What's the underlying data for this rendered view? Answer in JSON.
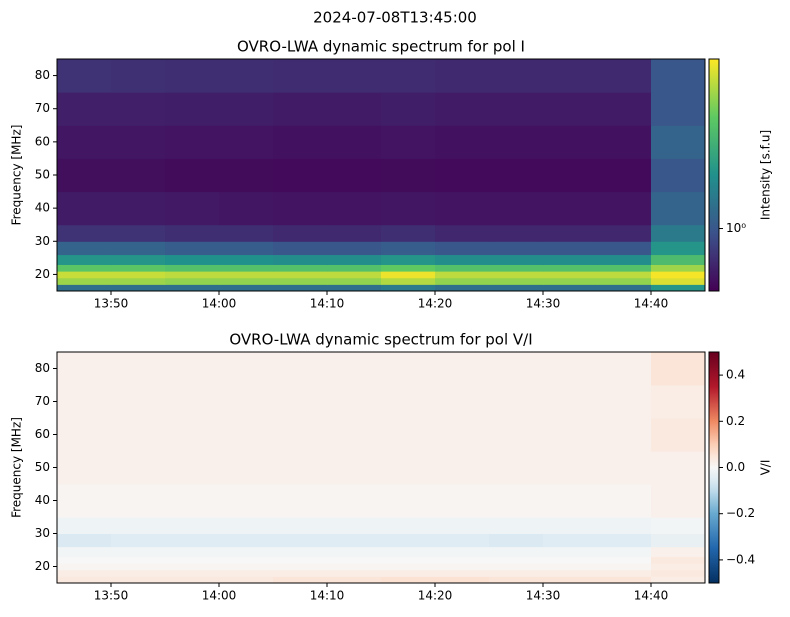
{
  "suptitle": "2024-07-08T13:45:00",
  "chart_data": [
    {
      "type": "heatmap",
      "title": "OVRO-LWA dynamic spectrum for pol I",
      "ylabel": "Frequency [MHz]",
      "xlim": [
        "13:45",
        "14:45"
      ],
      "xticks": [
        "13:50",
        "14:00",
        "14:10",
        "14:20",
        "14:30",
        "14:40"
      ],
      "ylim": [
        15,
        85
      ],
      "yticks": [
        20,
        30,
        40,
        50,
        60,
        70,
        80
      ],
      "x_edges": [
        "13:45",
        "13:50",
        "13:55",
        "14:00",
        "14:05",
        "14:10",
        "14:15",
        "14:20",
        "14:25",
        "14:30",
        "14:35",
        "14:40",
        "14:45"
      ],
      "y_edges": [
        15,
        17,
        19,
        21,
        23,
        26,
        30,
        35,
        45,
        55,
        65,
        75,
        85
      ],
      "values": [
        [
          1.2,
          1.2,
          1.2,
          1.2,
          1.2,
          1.2,
          1.3,
          1.2,
          1.2,
          1.2,
          1.2,
          1.6
        ],
        [
          3.0,
          3.0,
          2.9,
          2.9,
          2.9,
          2.9,
          3.2,
          2.9,
          2.9,
          2.9,
          2.9,
          3.6
        ],
        [
          3.4,
          3.4,
          3.3,
          3.3,
          3.3,
          3.3,
          3.8,
          3.3,
          3.3,
          3.3,
          3.3,
          3.9
        ],
        [
          2.4,
          2.4,
          2.3,
          2.3,
          2.3,
          2.3,
          2.5,
          2.3,
          2.3,
          2.3,
          2.3,
          3.0
        ],
        [
          1.6,
          1.6,
          1.55,
          1.55,
          1.5,
          1.5,
          1.6,
          1.5,
          1.5,
          1.5,
          1.5,
          2.2
        ],
        [
          1.1,
          1.1,
          1.05,
          1.05,
          1.0,
          1.0,
          1.05,
          1.0,
          1.0,
          1.0,
          1.0,
          1.6
        ],
        [
          0.8,
          0.8,
          0.78,
          0.78,
          0.76,
          0.76,
          0.78,
          0.75,
          0.75,
          0.75,
          0.75,
          1.3
        ],
        [
          0.7,
          0.7,
          0.69,
          0.68,
          0.67,
          0.67,
          0.68,
          0.67,
          0.67,
          0.67,
          0.67,
          1.1
        ],
        [
          0.65,
          0.65,
          0.64,
          0.64,
          0.63,
          0.63,
          0.64,
          0.63,
          0.63,
          0.63,
          0.63,
          1.0
        ],
        [
          0.68,
          0.68,
          0.67,
          0.67,
          0.66,
          0.66,
          0.67,
          0.66,
          0.66,
          0.66,
          0.66,
          1.1
        ],
        [
          0.72,
          0.72,
          0.71,
          0.71,
          0.7,
          0.7,
          0.71,
          0.7,
          0.7,
          0.7,
          0.7,
          1.0
        ],
        [
          0.8,
          0.79,
          0.78,
          0.78,
          0.77,
          0.77,
          0.77,
          0.76,
          0.76,
          0.76,
          0.76,
          1.0
        ]
      ],
      "colormap": "viridis",
      "color_scale": "log",
      "clim": [
        0.6,
        4
      ],
      "cticks": [
        {
          "value": 1,
          "label": "10⁰"
        }
      ],
      "clabel": "Intensity [s.f.u]"
    },
    {
      "type": "heatmap",
      "title": "OVRO-LWA dynamic spectrum for pol V/I",
      "ylabel": "Frequency [MHz]",
      "xlim": [
        "13:45",
        "14:45"
      ],
      "xticks": [
        "13:50",
        "14:00",
        "14:10",
        "14:20",
        "14:30",
        "14:40"
      ],
      "ylim": [
        15,
        85
      ],
      "yticks": [
        20,
        30,
        40,
        50,
        60,
        70,
        80
      ],
      "x_edges": [
        "13:45",
        "13:50",
        "13:55",
        "14:00",
        "14:05",
        "14:10",
        "14:15",
        "14:20",
        "14:25",
        "14:30",
        "14:35",
        "14:40",
        "14:45"
      ],
      "y_edges": [
        15,
        17,
        19,
        21,
        23,
        26,
        30,
        35,
        45,
        55,
        65,
        75,
        85
      ],
      "values": [
        [
          0.04,
          0.04,
          0.04,
          0.04,
          0.05,
          0.05,
          0.06,
          0.06,
          0.05,
          0.05,
          0.05,
          0.03
        ],
        [
          0.03,
          0.03,
          0.03,
          0.03,
          0.03,
          0.03,
          0.03,
          0.03,
          0.03,
          0.03,
          0.03,
          0.04
        ],
        [
          0.01,
          0.01,
          0.01,
          0.01,
          0.01,
          0.01,
          0.01,
          0.01,
          0.01,
          0.01,
          0.01,
          0.03
        ],
        [
          0.0,
          0.0,
          0.0,
          0.0,
          0.0,
          0.0,
          0.0,
          0.0,
          0.0,
          0.0,
          0.0,
          0.04
        ],
        [
          -0.01,
          -0.01,
          -0.01,
          -0.01,
          -0.01,
          -0.01,
          -0.01,
          -0.01,
          -0.01,
          -0.01,
          -0.01,
          0.02
        ],
        [
          -0.06,
          -0.05,
          -0.05,
          -0.05,
          -0.05,
          -0.05,
          -0.05,
          -0.05,
          -0.06,
          -0.05,
          -0.05,
          -0.03
        ],
        [
          -0.02,
          -0.02,
          -0.02,
          -0.02,
          -0.02,
          -0.02,
          -0.02,
          -0.02,
          -0.02,
          -0.02,
          -0.02,
          -0.01
        ],
        [
          0.01,
          0.01,
          0.01,
          0.01,
          0.01,
          0.01,
          0.01,
          0.01,
          0.01,
          0.01,
          0.01,
          0.02
        ],
        [
          0.02,
          0.02,
          0.02,
          0.02,
          0.02,
          0.02,
          0.02,
          0.02,
          0.02,
          0.02,
          0.02,
          0.02
        ],
        [
          0.02,
          0.02,
          0.02,
          0.02,
          0.02,
          0.02,
          0.02,
          0.02,
          0.02,
          0.02,
          0.02,
          0.04
        ],
        [
          0.02,
          0.02,
          0.02,
          0.02,
          0.02,
          0.02,
          0.02,
          0.02,
          0.02,
          0.02,
          0.02,
          0.03
        ],
        [
          0.02,
          0.02,
          0.02,
          0.02,
          0.02,
          0.02,
          0.02,
          0.02,
          0.02,
          0.02,
          0.02,
          0.05
        ]
      ],
      "colormap": "RdBu_r",
      "color_scale": "linear",
      "clim": [
        -0.5,
        0.5
      ],
      "cticks": [
        {
          "value": -0.4,
          "label": "−0.4"
        },
        {
          "value": -0.2,
          "label": "−0.2"
        },
        {
          "value": 0.0,
          "label": "0.0"
        },
        0.2,
        0.4
      ],
      "clabel": "V/I"
    }
  ]
}
